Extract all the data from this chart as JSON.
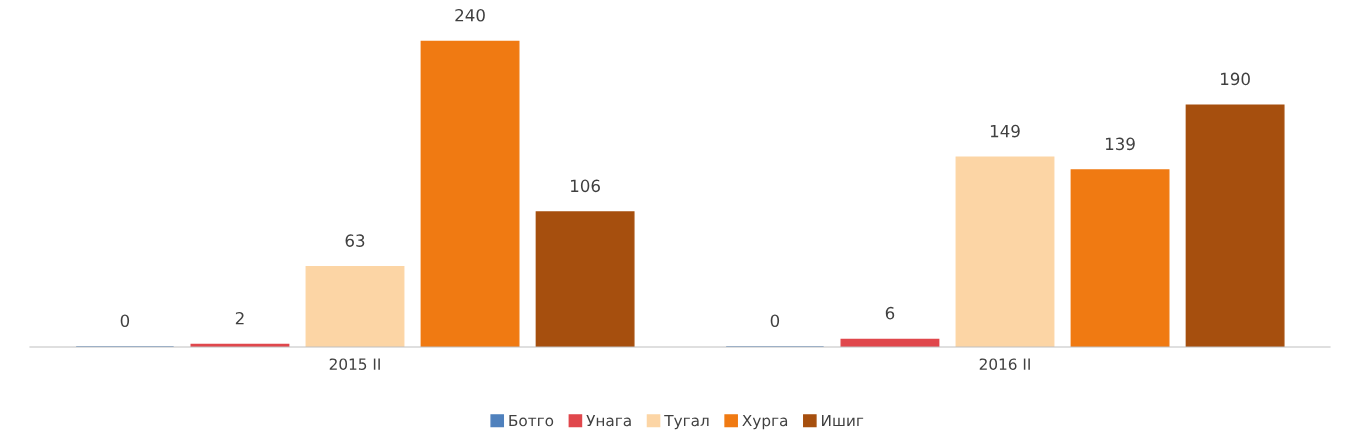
{
  "chart_data": {
    "type": "bar",
    "categories": [
      "2015 II",
      "2016 II"
    ],
    "series": [
      {
        "name": "Ботго",
        "color": "#4f81bd",
        "values": [
          0,
          0
        ]
      },
      {
        "name": "Унага",
        "color": "#e0474c",
        "values": [
          2,
          6
        ]
      },
      {
        "name": "Тугал",
        "color": "#fcd5a5",
        "values": [
          63,
          149
        ]
      },
      {
        "name": "Хурга",
        "color": "#f07a12",
        "values": [
          240,
          139
        ]
      },
      {
        "name": "Ишиг",
        "color": "#a64f0e",
        "values": [
          106,
          190
        ]
      }
    ],
    "data_labels": true,
    "legend": "bottom",
    "grid": false
  }
}
